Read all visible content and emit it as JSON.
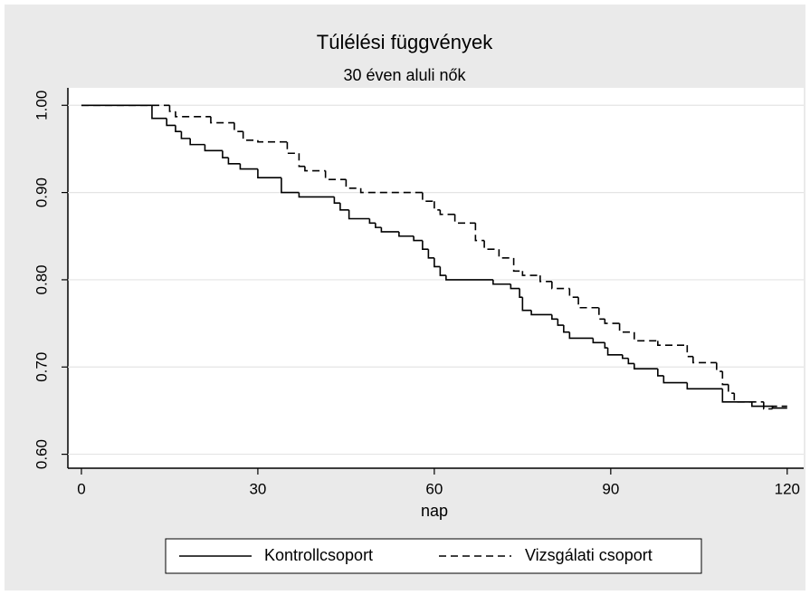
{
  "chart_data": {
    "type": "step",
    "title": "Túlélési függvények",
    "subtitle": "30 éven aluli nők",
    "x_label": "nap",
    "xlim": [
      -2.3,
      122.8
    ],
    "xticks": [
      0,
      30,
      60,
      90,
      120
    ],
    "ylim": [
      0.584,
      1.02
    ],
    "yticks": [
      {
        "value": 1.0,
        "label": "1.00"
      },
      {
        "value": 0.9,
        "label": "0.90"
      },
      {
        "value": 0.8,
        "label": "0.80"
      },
      {
        "value": 0.7,
        "label": "0.70"
      },
      {
        "value": 0.6,
        "label": "0.60"
      }
    ],
    "grid": true,
    "legend": "bottom",
    "series": [
      {
        "name": "Kontrollcsoport",
        "color": "#000000",
        "dash": "solid",
        "x": [
          0,
          12,
          14.5,
          16,
          17,
          18.5,
          21,
          24,
          25,
          27,
          30,
          34,
          37,
          43,
          44,
          45.5,
          49,
          50,
          51,
          54,
          56.5,
          58,
          59,
          60,
          61,
          62,
          70,
          73,
          74.5,
          75,
          76.5,
          80,
          81,
          82,
          83,
          87,
          89,
          89.5,
          92,
          93,
          94,
          98,
          99,
          103,
          109,
          114,
          117.5,
          120
        ],
        "values": [
          1.0,
          0.985,
          0.977,
          0.97,
          0.962,
          0.955,
          0.948,
          0.94,
          0.933,
          0.927,
          0.917,
          0.9,
          0.895,
          0.888,
          0.88,
          0.87,
          0.865,
          0.86,
          0.855,
          0.85,
          0.845,
          0.835,
          0.825,
          0.815,
          0.805,
          0.8,
          0.795,
          0.79,
          0.78,
          0.765,
          0.76,
          0.755,
          0.748,
          0.74,
          0.733,
          0.728,
          0.722,
          0.714,
          0.71,
          0.704,
          0.698,
          0.69,
          0.682,
          0.675,
          0.66,
          0.655,
          0.653,
          0.653
        ]
      },
      {
        "name": "Vizsgálati csoport",
        "color": "#000000",
        "dash": "dashed",
        "x": [
          0,
          15,
          16,
          22,
          26,
          27.5,
          30,
          35,
          37,
          38,
          41.5,
          45,
          47.5,
          58,
          60,
          61,
          63.5,
          67,
          68.5,
          71,
          73.5,
          75,
          78,
          80,
          83,
          84.5,
          88,
          89,
          91.5,
          94,
          98,
          103,
          104,
          108,
          109,
          110,
          111,
          116,
          117.5,
          120
        ],
        "values": [
          1.0,
          0.993,
          0.987,
          0.98,
          0.97,
          0.96,
          0.958,
          0.945,
          0.93,
          0.925,
          0.915,
          0.905,
          0.9,
          0.89,
          0.88,
          0.875,
          0.865,
          0.845,
          0.835,
          0.825,
          0.81,
          0.805,
          0.798,
          0.79,
          0.78,
          0.768,
          0.755,
          0.75,
          0.74,
          0.73,
          0.725,
          0.712,
          0.705,
          0.695,
          0.68,
          0.67,
          0.66,
          0.652,
          0.655,
          0.655
        ]
      }
    ]
  }
}
